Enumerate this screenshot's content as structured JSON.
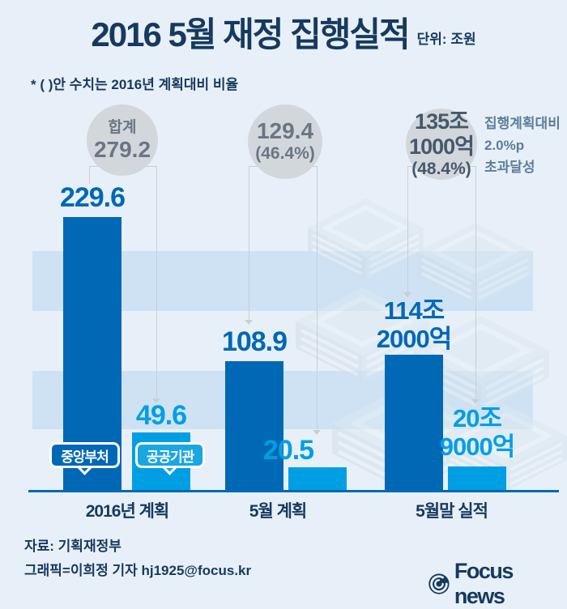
{
  "title": "2016 5월 재정 집행실적",
  "unit": "단위: 조원",
  "note": "* (  )안 수치는 2016년 계획대비 비율",
  "annotation": {
    "line1": "집행계획대비",
    "line2": "2.0%p",
    "line3": "초과달성"
  },
  "colors": {
    "background": "#e7f0f8",
    "band": "#cee2f3",
    "dark_bar": "#0068b5",
    "light_bar": "#009fe3",
    "navy_text": "#17395f",
    "circle_fill": "#d2d7dc",
    "circle_text": "#6b7683",
    "total3_text": "#46586c",
    "annotation_text": "#5d7d9a",
    "bracket_line": "#c8cfd6"
  },
  "chart_data": {
    "type": "bar",
    "title": "2016 5월 재정 집행실적",
    "ylabel": "조원",
    "ylim": [
      0,
      240
    ],
    "grid": false,
    "legend_position": "on-first-group-bars",
    "categories": [
      "2016년 계획",
      "5월 계획",
      "5월말 실적"
    ],
    "series": [
      {
        "name": "중앙부처",
        "color": "#0068b5",
        "values": [
          229.6,
          108.9,
          114.2
        ]
      },
      {
        "name": "공공기관",
        "color": "#009fe3",
        "values": [
          49.6,
          20.5,
          20.9
        ]
      }
    ],
    "value_labels": [
      {
        "main": [
          "229.6"
        ],
        "sub": [
          "49.6"
        ]
      },
      {
        "main": [
          "108.9"
        ],
        "sub": [
          "20.5"
        ]
      },
      {
        "main": [
          "114조",
          "2000억"
        ],
        "sub": [
          "20조",
          "9000억"
        ]
      }
    ],
    "totals": [
      {
        "value": 279.2,
        "lines": [
          "합계",
          "279.2"
        ]
      },
      {
        "value": 129.4,
        "pct": "46.4%",
        "lines": [
          "129.4",
          "(46.4%)"
        ]
      },
      {
        "value": 135.1,
        "pct": "48.4%",
        "lines": [
          "135조",
          "1000억",
          "(48.4%)"
        ]
      }
    ]
  },
  "footer": {
    "source": "자료: 기획재정부",
    "credit": "그래픽=이희정 기자 hj1925@focus.kr",
    "logo": "Focus news"
  }
}
